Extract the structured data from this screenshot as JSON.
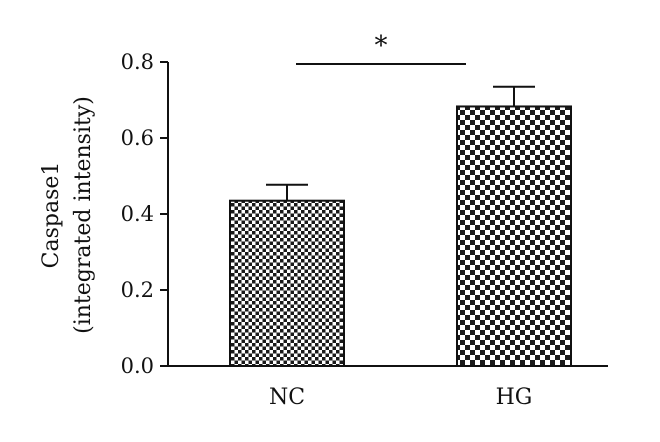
{
  "chart_data": {
    "type": "bar",
    "categories": [
      "NC",
      "HG"
    ],
    "values": [
      0.435,
      0.683
    ],
    "errors": [
      0.042,
      0.052
    ],
    "ylabel_line1": "Caspase1",
    "ylabel_line2": "(integrated intensity)",
    "xlabel": "",
    "ylim": [
      0,
      0.8
    ],
    "yticks": [
      "0.0",
      "0.2",
      "0.4",
      "0.6",
      "0.8"
    ],
    "significance": {
      "between": [
        "NC",
        "HG"
      ],
      "label": "*"
    },
    "grid": false,
    "legend": "none",
    "colors": {
      "axis": "#111111",
      "bar_dark": "#1a1a1a",
      "bar_light": "#ffffff"
    }
  }
}
